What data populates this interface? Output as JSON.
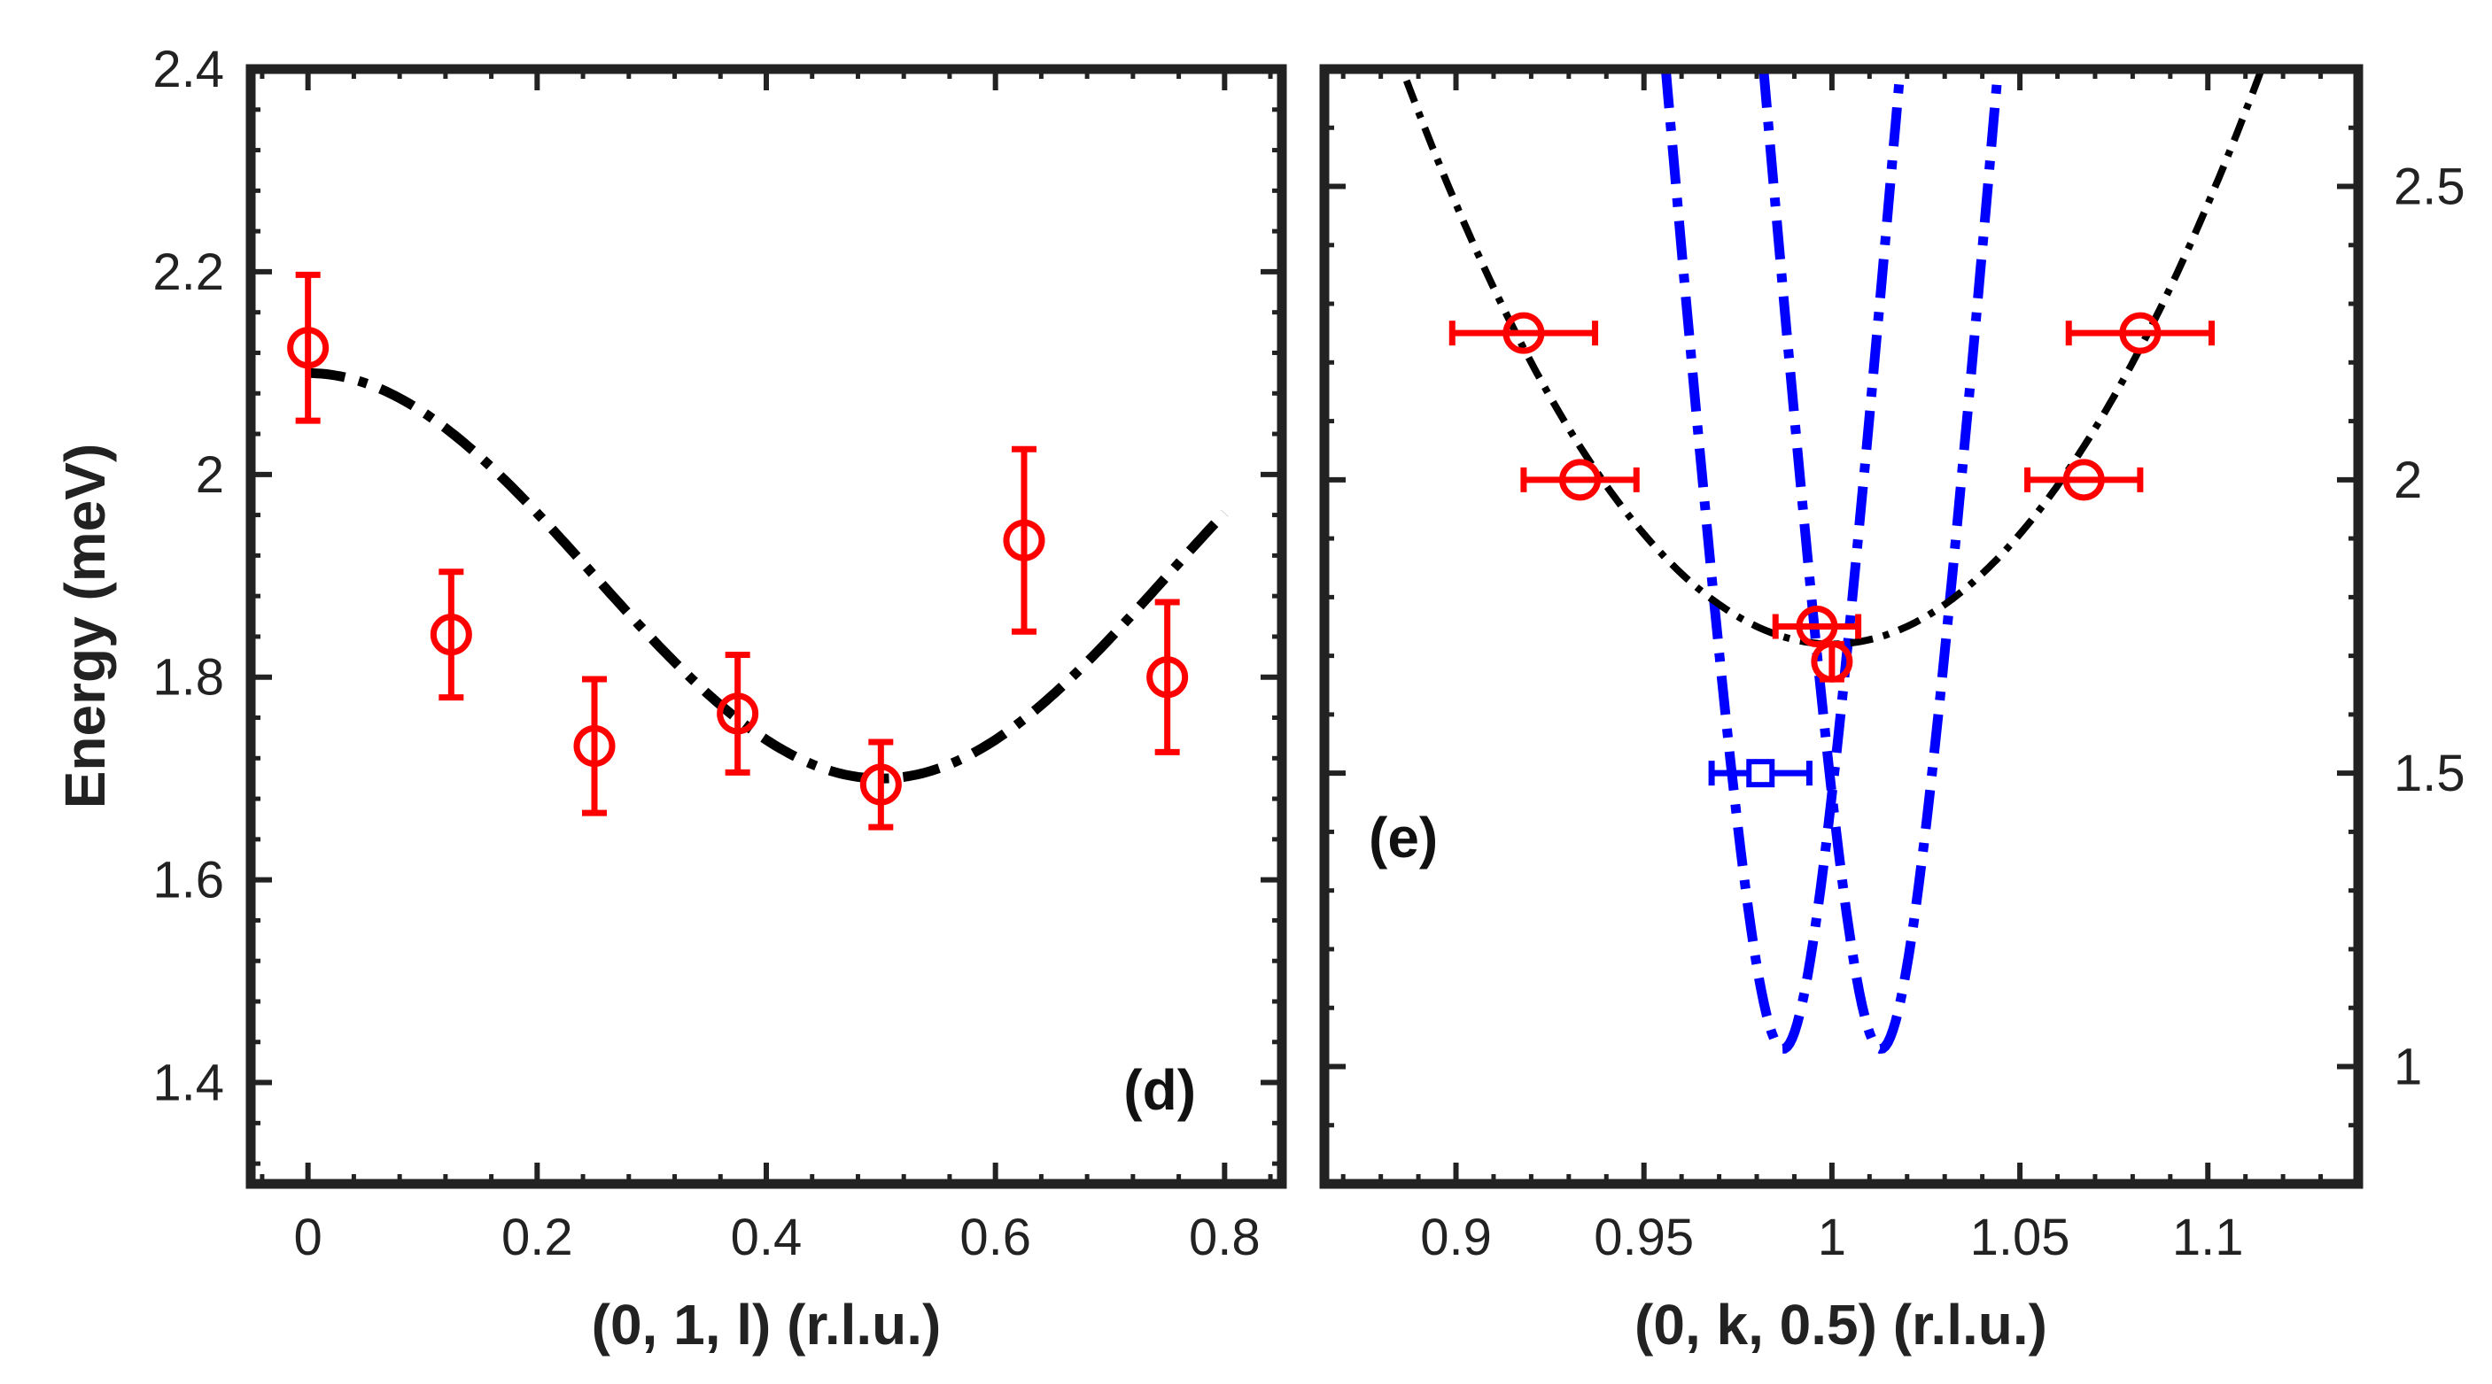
{
  "chart_data": [
    {
      "id": "panel-d",
      "type": "scatter",
      "panel_label": "(d)",
      "xlabel": "(0, 1, l) (r.l.u.)",
      "ylabel": "Energy (meV)",
      "xlim": [
        -0.05,
        0.85
      ],
      "ylim": [
        1.3,
        2.4
      ],
      "x_ticks": [
        0,
        0.2,
        0.4,
        0.6,
        0.8
      ],
      "x_tick_labels": [
        "0",
        "0.2",
        "0.4",
        "0.6",
        "0.8"
      ],
      "y_ticks": [
        1.4,
        1.6,
        1.8,
        2.0,
        2.2,
        2.4
      ],
      "y_tick_labels": [
        "1.4",
        "1.6",
        "1.8",
        "2",
        "2.2",
        "2.4"
      ],
      "colors": {
        "points": "#ff0000",
        "fit": "#000000"
      },
      "points": [
        {
          "x": 0.0,
          "y": 2.125,
          "yerr": 0.072
        },
        {
          "x": 0.125,
          "y": 1.842,
          "yerr": 0.062
        },
        {
          "x": 0.25,
          "y": 1.732,
          "yerr": 0.066
        },
        {
          "x": 0.375,
          "y": 1.764,
          "yerr": 0.058
        },
        {
          "x": 0.5,
          "y": 1.694,
          "yerr": 0.042
        },
        {
          "x": 0.625,
          "y": 1.935,
          "yerr": 0.09
        },
        {
          "x": 0.75,
          "y": 1.8,
          "yerr": 0.074
        }
      ],
      "fit": {
        "style": "dash-dot",
        "form": "A + B*cos(2*pi*x)",
        "A": 1.9,
        "B": 0.2,
        "x_range": [
          0,
          0.8
        ]
      }
    },
    {
      "id": "panel-e",
      "type": "scatter",
      "panel_label": "(e)",
      "xlabel": "(0, k, 0.5) (r.l.u.)",
      "ylabel": "",
      "y_axis_side": "right",
      "xlim": [
        0.865,
        1.14
      ],
      "ylim": [
        0.8,
        2.7
      ],
      "x_ticks": [
        0.9,
        0.95,
        1.0,
        1.05,
        1.1
      ],
      "x_tick_labels": [
        "0.9",
        "0.95",
        "1",
        "1.05",
        "1.1"
      ],
      "y_ticks": [
        1.0,
        1.5,
        2.0,
        2.5
      ],
      "y_tick_labels": [
        "1",
        "1.5",
        "2",
        "2.5"
      ],
      "colors": {
        "points": "#ff0000",
        "blue_point": "#0000ff",
        "fit": "#000000",
        "blue_curves": "#0000ff"
      },
      "points": [
        {
          "x": 0.918,
          "y": 2.25,
          "xerr": 0.019
        },
        {
          "x": 1.082,
          "y": 2.25,
          "xerr": 0.019
        },
        {
          "x": 0.933,
          "y": 2.0,
          "xerr": 0.015
        },
        {
          "x": 1.067,
          "y": 2.0,
          "xerr": 0.015
        },
        {
          "x": 0.996,
          "y": 1.75,
          "xerr": 0.011
        },
        {
          "x": 1.0,
          "y": 1.69,
          "yerr": 0.03
        }
      ],
      "blue_points": [
        {
          "x": 0.981,
          "y": 1.5,
          "xerr": 0.013
        }
      ],
      "fit": {
        "style": "dash-dot",
        "form": "Emin + a*(k-1)^2",
        "Emin": 1.72,
        "a": 75.0
      },
      "blue_curves": [
        {
          "style": "dash-dot",
          "form": "sqrt(Emin^2 + c^2*(k-k0)^2)",
          "Emin": 1.03,
          "c": 80.0,
          "k0": 0.987
        },
        {
          "style": "dash-dot",
          "form": "sqrt(Emin^2 + c^2*(k-k0)^2)",
          "Emin": 1.03,
          "c": 80.0,
          "k0": 1.013
        }
      ]
    }
  ]
}
